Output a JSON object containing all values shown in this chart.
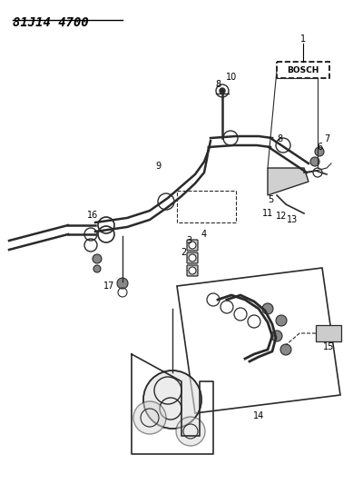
{
  "title": "81J14 4700",
  "bg_color": "#ffffff",
  "gray": "#2a2a2a",
  "light_gray": "#888888",
  "title_fontsize": 10,
  "label_fontsize": 7
}
